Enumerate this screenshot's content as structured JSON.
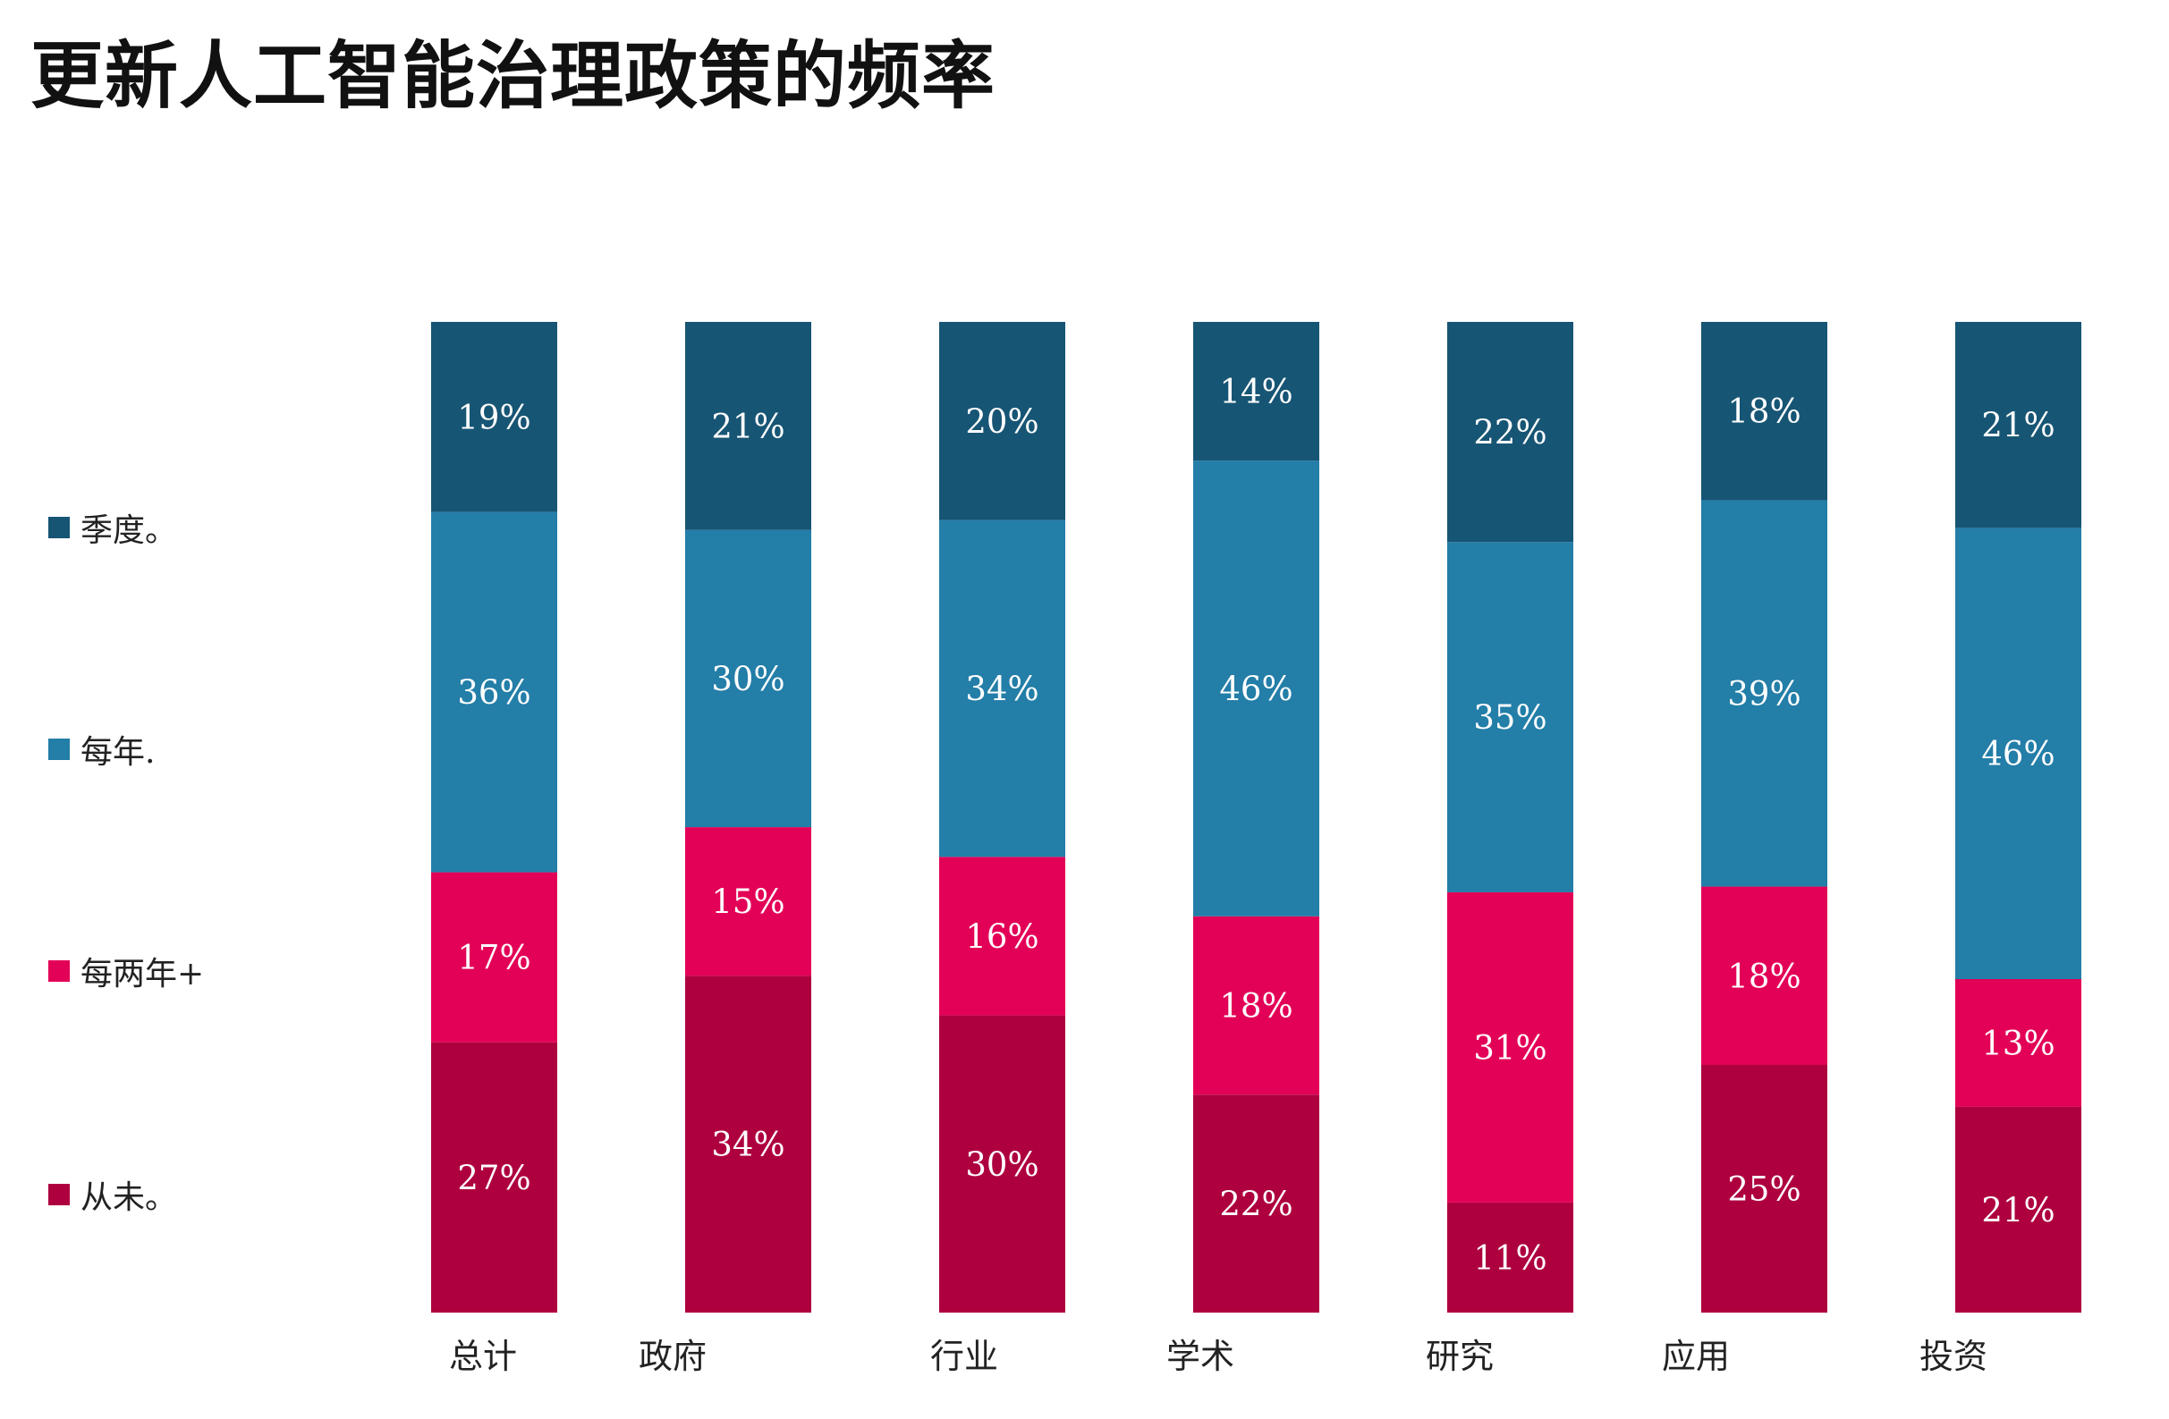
{
  "chart_data": {
    "type": "bar",
    "stacked": true,
    "title": "更新人工智能治理政策的频率",
    "categories": [
      "总计",
      "政府",
      "行业",
      "学术",
      "研究",
      "应用",
      "投资"
    ],
    "series": [
      {
        "name": "从未。",
        "color": "#AE003F",
        "values": [
          27,
          34,
          30,
          22,
          11,
          25,
          21
        ]
      },
      {
        "name": "每两年+",
        "color": "#E30057",
        "values": [
          17,
          15,
          16,
          18,
          31,
          18,
          13
        ]
      },
      {
        "name": "每年.",
        "color": "#237EA8",
        "values": [
          36,
          30,
          34,
          46,
          35,
          39,
          46
        ]
      },
      {
        "name": "季度。",
        "color": "#175574",
        "values": [
          19,
          21,
          20,
          14,
          22,
          18,
          21
        ]
      }
    ],
    "value_suffix": "%",
    "legend_order": [
      "季度。",
      "每年.",
      "每两年+",
      "从未。"
    ],
    "legend": "left",
    "grid": false
  }
}
